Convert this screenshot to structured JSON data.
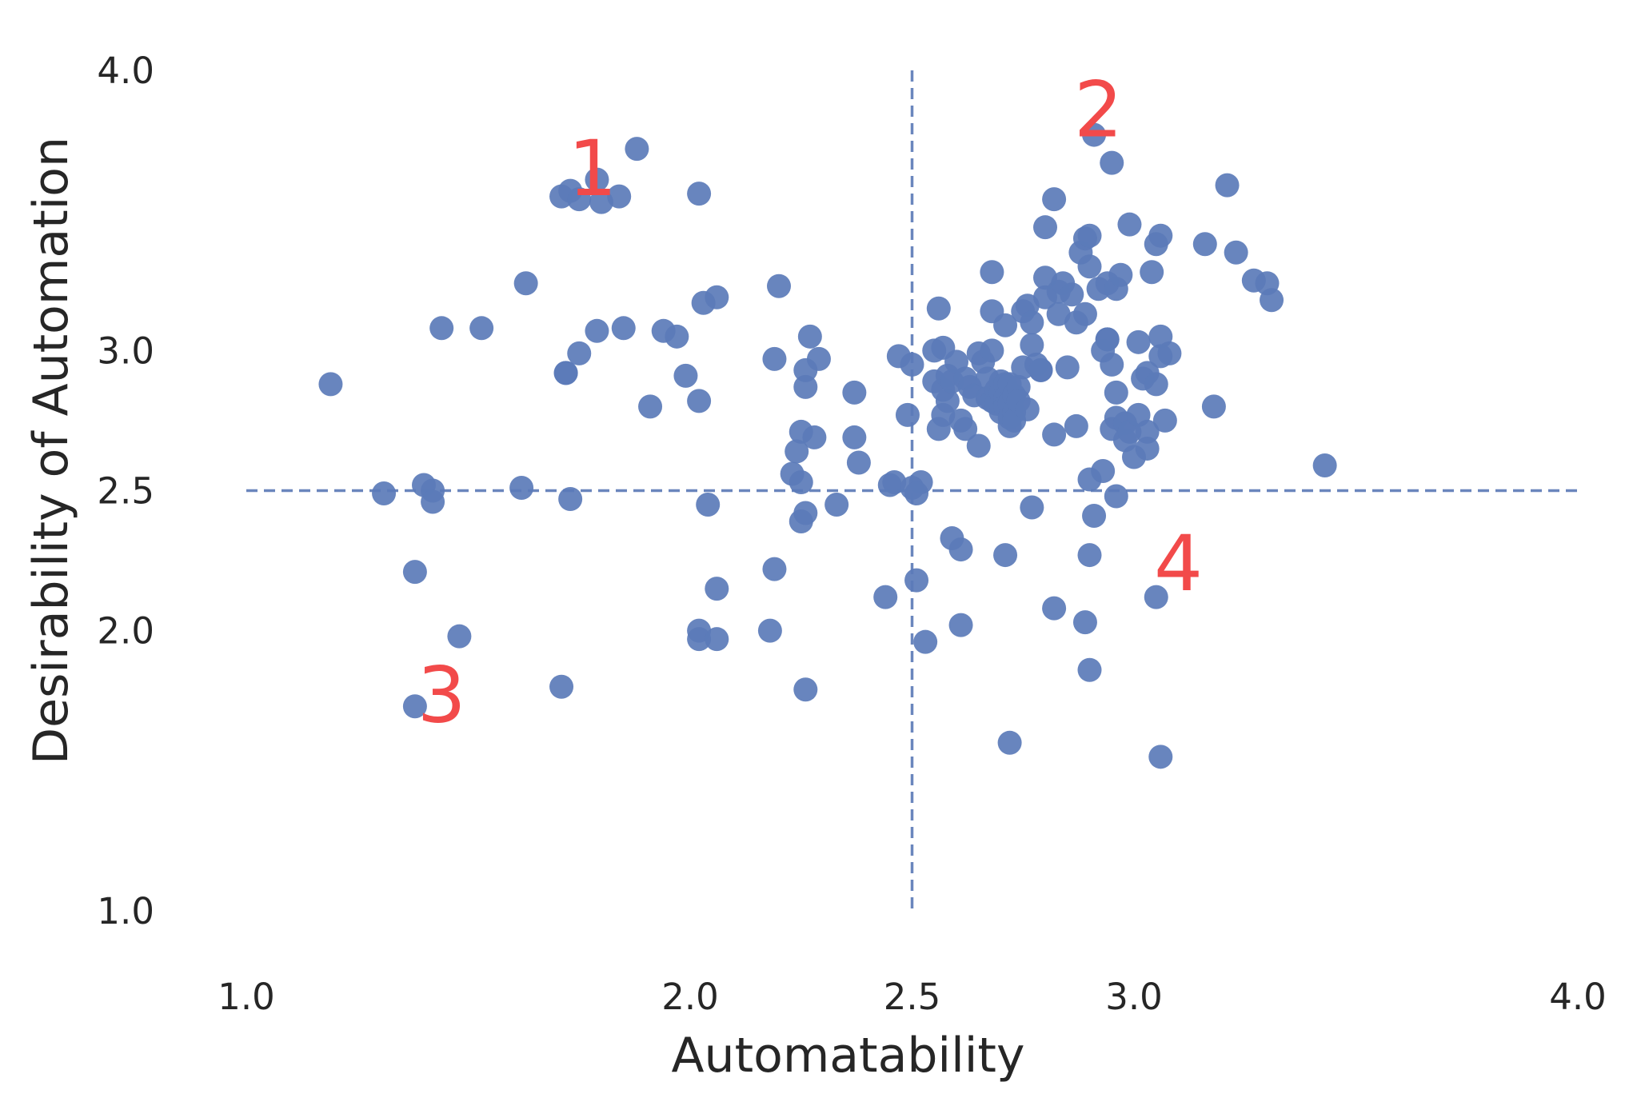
{
  "chart_data": {
    "type": "scatter",
    "title": "",
    "xlabel": "Automatability",
    "ylabel": "Desirability of Automation",
    "xlim": [
      1.0,
      4.0
    ],
    "ylim": [
      1.0,
      4.0
    ],
    "xticks": [
      "1.0",
      "2.0",
      "2.5",
      "3.0",
      "4.0"
    ],
    "yticks": [
      "1.0",
      "2.0",
      "2.5",
      "3.0",
      "4.0"
    ],
    "xtick_values": [
      1.0,
      2.0,
      2.5,
      3.0,
      4.0
    ],
    "ytick_values": [
      1.0,
      2.0,
      2.5,
      3.0,
      4.0
    ],
    "grid": false,
    "reference_lines": {
      "x": 2.5,
      "y": 2.5,
      "style": "dashed",
      "color": "#6a86bd"
    },
    "point_color": "#5b7bb8",
    "label_color": "#f24a4a",
    "quadrant_labels": [
      {
        "text": "1",
        "x": 1.78,
        "y": 3.63
      },
      {
        "text": "2",
        "x": 2.92,
        "y": 3.84
      },
      {
        "text": "3",
        "x": 1.44,
        "y": 1.75
      },
      {
        "text": "4",
        "x": 3.1,
        "y": 2.22
      }
    ],
    "series": [
      {
        "points": [
          [
            1.19,
            2.88
          ],
          [
            1.31,
            2.49
          ],
          [
            1.4,
            2.52
          ],
          [
            1.42,
            2.5
          ],
          [
            1.42,
            2.46
          ],
          [
            1.38,
            2.21
          ],
          [
            1.48,
            1.98
          ],
          [
            1.38,
            1.73
          ],
          [
            1.44,
            3.08
          ],
          [
            1.53,
            3.08
          ],
          [
            1.62,
            2.51
          ],
          [
            1.63,
            3.24
          ],
          [
            1.71,
            1.8
          ],
          [
            1.73,
            2.47
          ],
          [
            1.72,
            2.92
          ],
          [
            1.72,
            2.92
          ],
          [
            1.75,
            2.99
          ],
          [
            1.71,
            3.55
          ],
          [
            1.73,
            3.57
          ],
          [
            1.75,
            3.54
          ],
          [
            1.79,
            3.61
          ],
          [
            1.8,
            3.53
          ],
          [
            1.84,
            3.55
          ],
          [
            1.88,
            3.72
          ],
          [
            1.79,
            3.07
          ],
          [
            1.85,
            3.08
          ],
          [
            1.91,
            2.8
          ],
          [
            1.94,
            3.07
          ],
          [
            1.97,
            3.05
          ],
          [
            1.99,
            2.91
          ],
          [
            2.02,
            2.82
          ],
          [
            2.02,
            3.56
          ],
          [
            2.03,
            3.17
          ],
          [
            2.06,
            3.19
          ],
          [
            2.04,
            2.45
          ],
          [
            2.02,
            2.0
          ],
          [
            2.02,
            1.97
          ],
          [
            2.06,
            1.97
          ],
          [
            2.06,
            2.15
          ],
          [
            2.18,
            2.0
          ],
          [
            2.19,
            2.22
          ],
          [
            2.19,
            2.97
          ],
          [
            2.2,
            3.23
          ],
          [
            2.23,
            2.56
          ],
          [
            2.24,
            2.64
          ],
          [
            2.25,
            2.71
          ],
          [
            2.25,
            2.53
          ],
          [
            2.25,
            2.39
          ],
          [
            2.26,
            2.42
          ],
          [
            2.26,
            2.87
          ],
          [
            2.26,
            2.93
          ],
          [
            2.28,
            2.69
          ],
          [
            2.27,
            3.05
          ],
          [
            2.29,
            2.97
          ],
          [
            2.26,
            1.79
          ],
          [
            2.33,
            2.45
          ],
          [
            2.37,
            2.85
          ],
          [
            2.37,
            2.69
          ],
          [
            2.38,
            2.6
          ],
          [
            2.44,
            2.12
          ],
          [
            2.45,
            2.52
          ],
          [
            2.46,
            2.53
          ],
          [
            2.47,
            2.98
          ],
          [
            2.49,
            2.77
          ],
          [
            2.5,
            2.51
          ],
          [
            2.5,
            2.95
          ],
          [
            2.51,
            2.18
          ],
          [
            2.52,
            2.53
          ],
          [
            2.53,
            1.96
          ],
          [
            2.55,
            3.0
          ],
          [
            2.55,
            2.89
          ],
          [
            2.56,
            3.15
          ],
          [
            2.57,
            2.86
          ],
          [
            2.58,
            2.91
          ],
          [
            2.57,
            3.01
          ],
          [
            2.56,
            2.72
          ],
          [
            2.57,
            2.77
          ],
          [
            2.58,
            2.82
          ],
          [
            2.59,
            2.89
          ],
          [
            2.6,
            2.96
          ],
          [
            2.61,
            2.75
          ],
          [
            2.62,
            2.9
          ],
          [
            2.62,
            2.72
          ],
          [
            2.59,
            2.33
          ],
          [
            2.61,
            2.29
          ],
          [
            2.61,
            2.02
          ],
          [
            2.63,
            2.87
          ],
          [
            2.64,
            2.84
          ],
          [
            2.65,
            2.66
          ],
          [
            2.65,
            2.99
          ],
          [
            2.66,
            2.96
          ],
          [
            2.67,
            2.9
          ],
          [
            2.67,
            2.83
          ],
          [
            2.68,
            2.82
          ],
          [
            2.68,
            3.0
          ],
          [
            2.68,
            3.14
          ],
          [
            2.68,
            3.28
          ],
          [
            2.69,
            2.86
          ],
          [
            2.69,
            2.81
          ],
          [
            2.7,
            2.78
          ],
          [
            2.7,
            2.89
          ],
          [
            2.7,
            2.85
          ],
          [
            2.71,
            2.88
          ],
          [
            2.71,
            2.83
          ],
          [
            2.71,
            2.8
          ],
          [
            2.71,
            3.09
          ],
          [
            2.72,
            2.88
          ],
          [
            2.72,
            2.81
          ],
          [
            2.72,
            2.76
          ],
          [
            2.72,
            2.73
          ],
          [
            2.73,
            2.84
          ],
          [
            2.73,
            2.78
          ],
          [
            2.73,
            2.75
          ],
          [
            2.74,
            2.87
          ],
          [
            2.74,
            2.82
          ],
          [
            2.75,
            2.94
          ],
          [
            2.75,
            3.14
          ],
          [
            2.76,
            3.16
          ],
          [
            2.76,
            2.79
          ],
          [
            2.77,
            3.02
          ],
          [
            2.77,
            3.1
          ],
          [
            2.78,
            2.95
          ],
          [
            2.79,
            2.93
          ],
          [
            2.79,
            2.93
          ],
          [
            2.8,
            3.19
          ],
          [
            2.8,
            3.26
          ],
          [
            2.8,
            3.44
          ],
          [
            2.82,
            3.54
          ],
          [
            2.82,
            2.7
          ],
          [
            2.83,
            3.13
          ],
          [
            2.83,
            3.21
          ],
          [
            2.84,
            3.24
          ],
          [
            2.85,
            2.94
          ],
          [
            2.86,
            3.2
          ],
          [
            2.87,
            2.73
          ],
          [
            2.87,
            3.1
          ],
          [
            2.88,
            3.35
          ],
          [
            2.89,
            3.4
          ],
          [
            2.89,
            3.13
          ],
          [
            2.9,
            3.41
          ],
          [
            2.9,
            3.3
          ],
          [
            2.9,
            2.54
          ],
          [
            2.91,
            2.41
          ],
          [
            2.91,
            3.77
          ],
          [
            2.92,
            3.22
          ],
          [
            2.93,
            3.0
          ],
          [
            2.93,
            2.57
          ],
          [
            2.94,
            3.24
          ],
          [
            2.94,
            3.04
          ],
          [
            2.94,
            3.04
          ],
          [
            2.95,
            2.95
          ],
          [
            2.95,
            2.72
          ],
          [
            2.95,
            3.67
          ],
          [
            2.96,
            2.48
          ],
          [
            2.96,
            3.22
          ],
          [
            2.96,
            2.85
          ],
          [
            2.96,
            2.76
          ],
          [
            2.97,
            3.27
          ],
          [
            2.98,
            2.74
          ],
          [
            2.98,
            2.68
          ],
          [
            2.99,
            3.45
          ],
          [
            2.99,
            2.71
          ],
          [
            3.0,
            2.62
          ],
          [
            3.01,
            2.77
          ],
          [
            3.01,
            3.03
          ],
          [
            3.02,
            2.9
          ],
          [
            3.03,
            2.71
          ],
          [
            3.03,
            2.92
          ],
          [
            3.03,
            2.65
          ],
          [
            3.04,
            3.28
          ],
          [
            3.05,
            3.38
          ],
          [
            3.05,
            2.88
          ],
          [
            3.06,
            3.41
          ],
          [
            3.06,
            3.05
          ],
          [
            3.06,
            2.98
          ],
          [
            3.07,
            2.75
          ],
          [
            3.08,
            2.99
          ],
          [
            3.16,
            3.38
          ],
          [
            3.18,
            2.8
          ],
          [
            3.21,
            3.59
          ],
          [
            3.23,
            3.35
          ],
          [
            3.27,
            3.25
          ],
          [
            3.3,
            3.24
          ],
          [
            3.31,
            3.18
          ],
          [
            3.43,
            2.59
          ],
          [
            2.51,
            2.49
          ],
          [
            2.71,
            2.27
          ],
          [
            2.77,
            2.44
          ],
          [
            2.82,
            2.08
          ],
          [
            2.9,
            2.27
          ],
          [
            2.89,
            2.03
          ],
          [
            2.9,
            1.86
          ],
          [
            2.72,
            1.6
          ],
          [
            3.06,
            1.55
          ],
          [
            3.05,
            2.12
          ]
        ]
      }
    ]
  }
}
